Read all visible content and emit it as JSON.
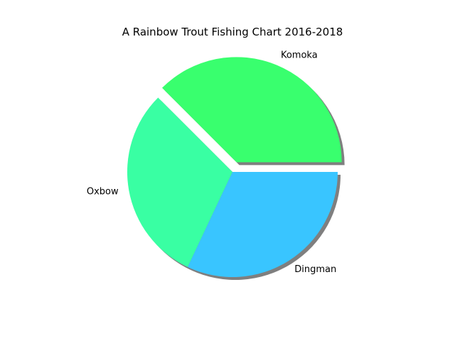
{
  "chart_data": {
    "type": "pie",
    "title": "A Rainbow Trout Fishing Chart 2016-2018",
    "categories": [
      "Komoka",
      "Oxbow",
      "Dingman"
    ],
    "values": [
      37.5,
      30.5,
      32.0
    ],
    "colors": [
      "#39ff6e",
      "#39ffa3",
      "#39c5ff"
    ],
    "exploded": [
      "Komoka"
    ],
    "shadow": true,
    "start_angle": 0,
    "direction": "counterclockwise",
    "legend": "none"
  }
}
